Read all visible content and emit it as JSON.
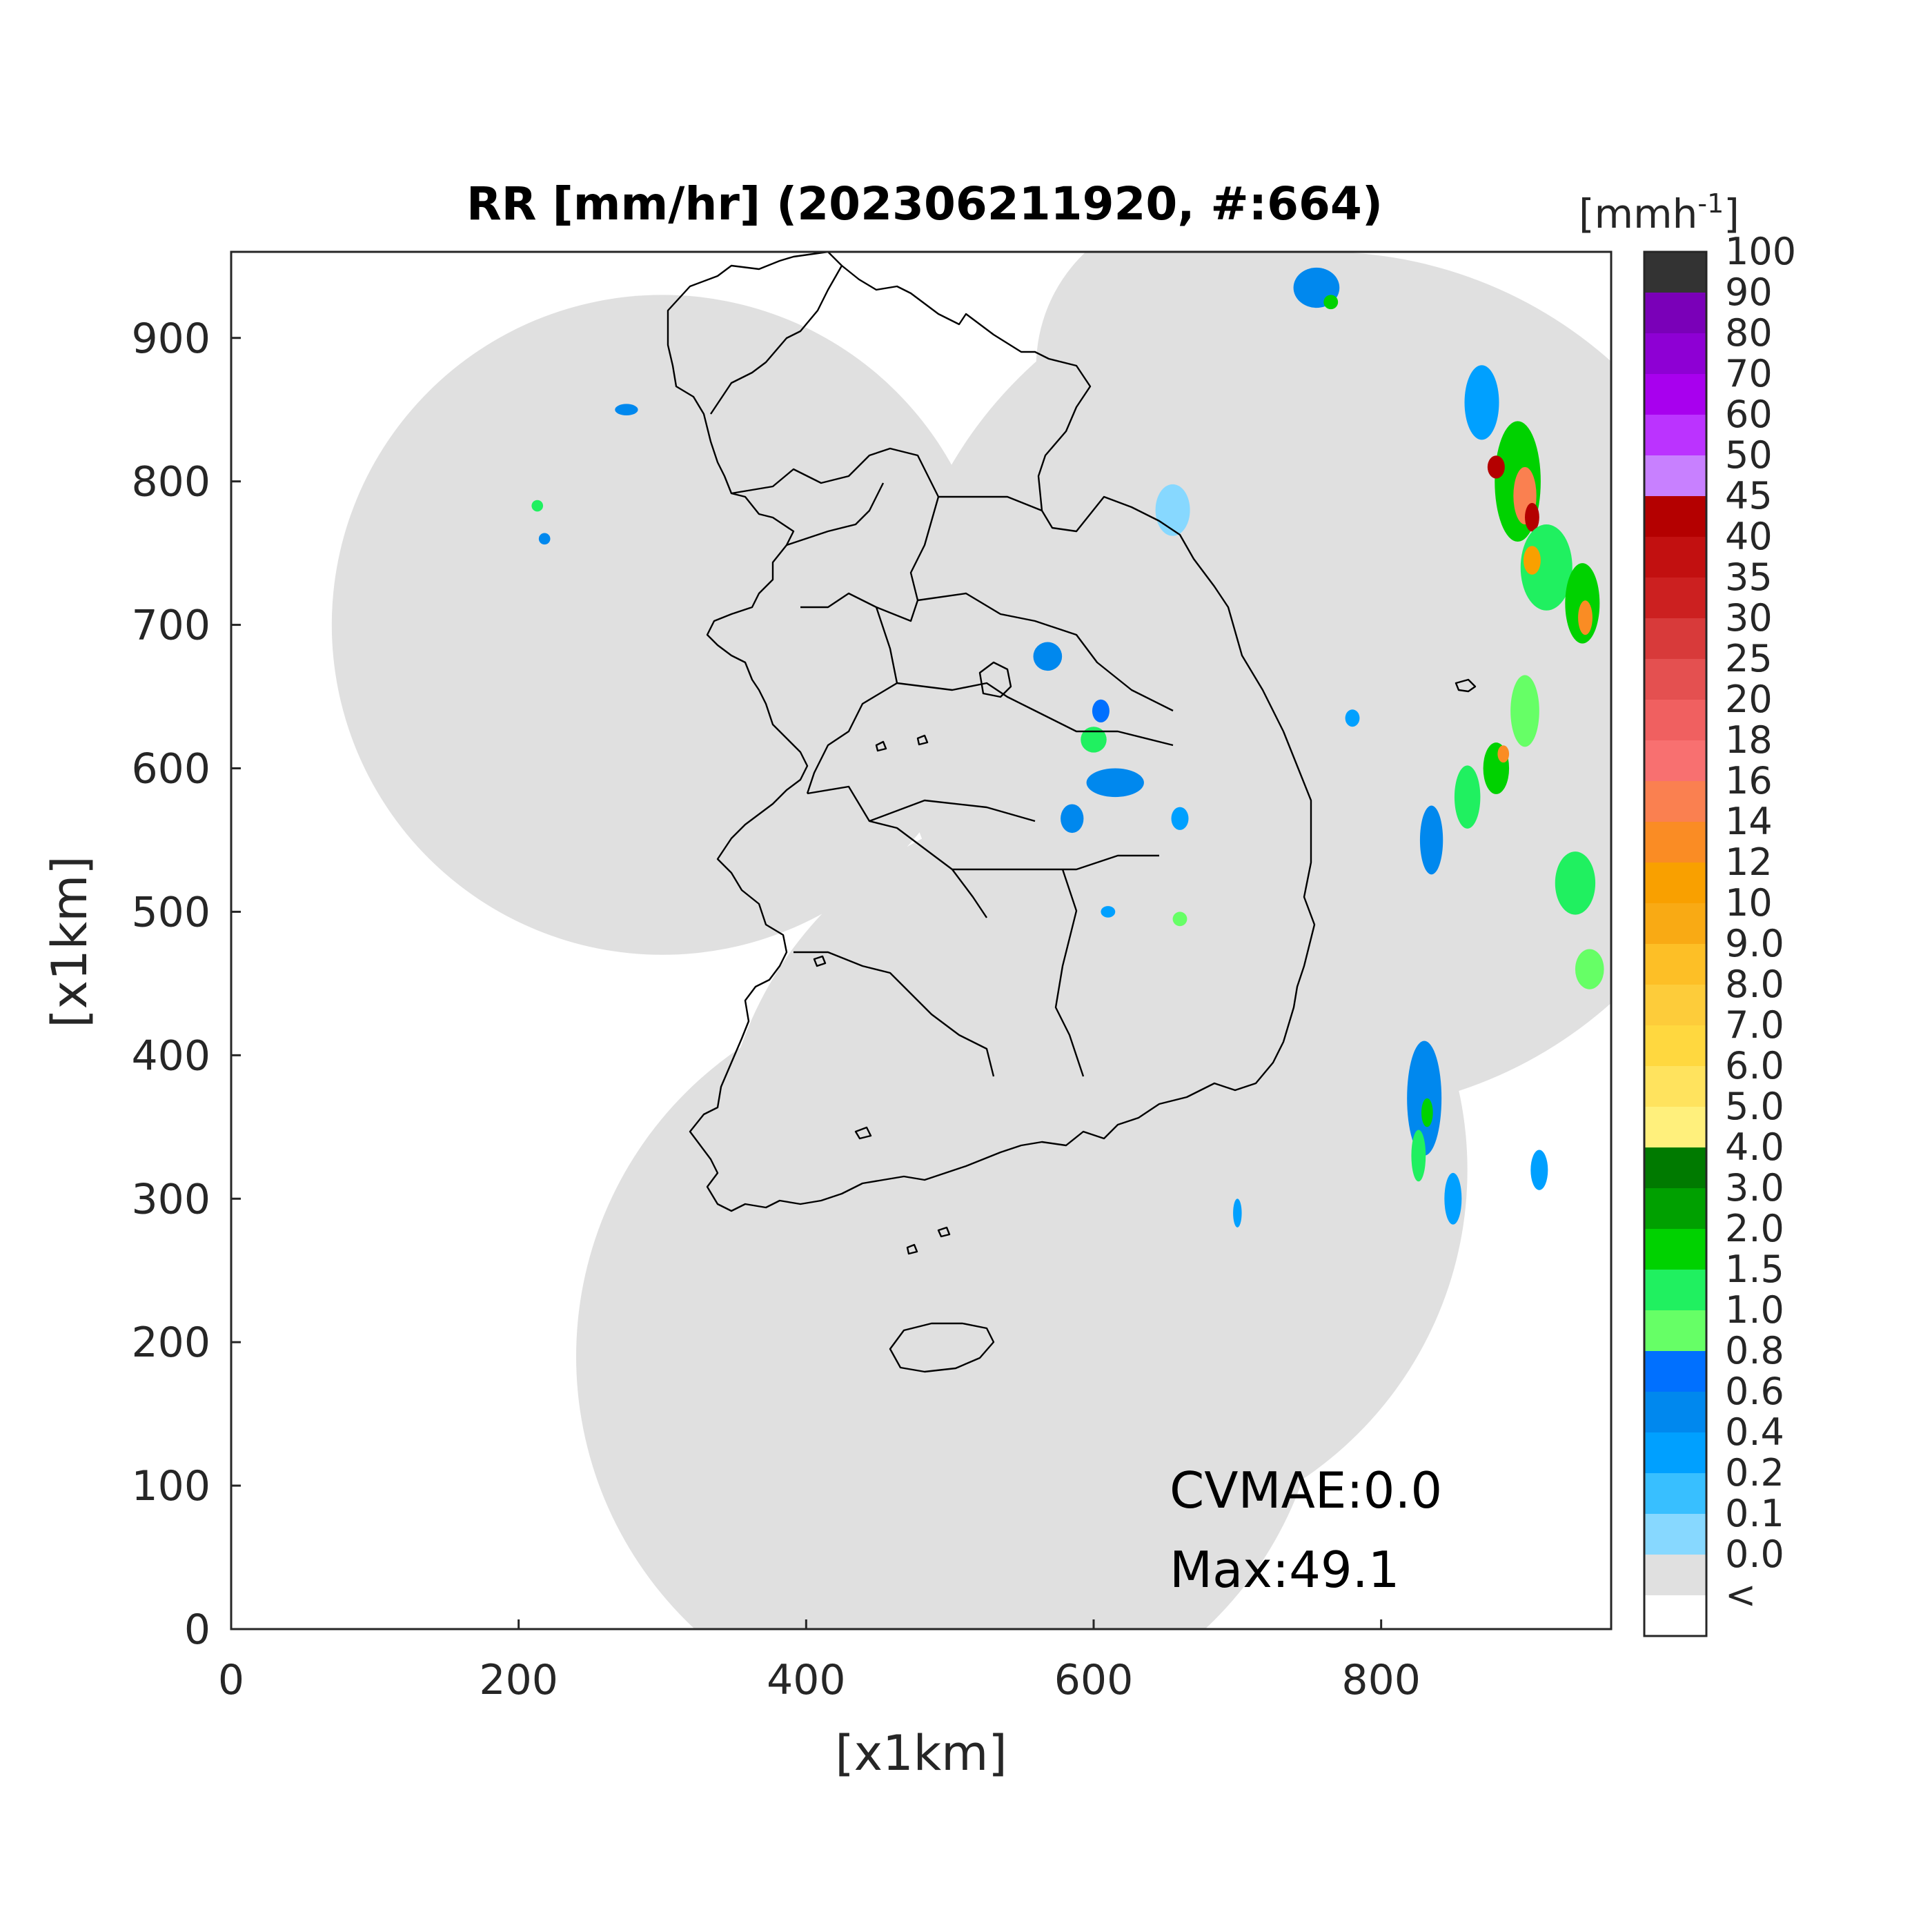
{
  "title": "RR [mm/hr] (202306211920, #:664)",
  "xlabel": "[x1km]",
  "ylabel": "[x1km]",
  "annotations": {
    "cvmae": "CVMAE:0.0",
    "max": "Max:49.1"
  },
  "colorbar": {
    "unit": "[mmh",
    "unit_exp": "-1",
    "unit_close": "]",
    "labels": [
      "100",
      "90",
      "80",
      "70",
      "60",
      "50",
      "45",
      "40",
      "35",
      "30",
      "25",
      "20",
      "18",
      "16",
      "14",
      "12",
      "10",
      "9.0",
      "8.0",
      "7.0",
      "6.0",
      "5.0",
      "4.0",
      "3.0",
      "2.0",
      "1.5",
      "1.0",
      "0.8",
      "0.6",
      "0.4",
      "0.2",
      "0.1",
      "0.0",
      "<"
    ],
    "colors": [
      "#333333",
      "#7a00b8",
      "#8e00d4",
      "#a800ee",
      "#bb33ff",
      "#c880ff",
      "#b40000",
      "#c21010",
      "#cc2020",
      "#d83a3a",
      "#e45050",
      "#f06060",
      "#f87070",
      "#fa8050",
      "#fa8c24",
      "#f9a000",
      "#f9aa14",
      "#fdbf26",
      "#fdcc3a",
      "#ffd83f",
      "#ffe35e",
      "#fff07c",
      "#007a00",
      "#00a000",
      "#00d200",
      "#20f060",
      "#66ff66",
      "#0070ff",
      "#0088ee",
      "#00a0ff",
      "#38bfff",
      "#87d8ff",
      "#e0e0e0",
      "#ffffff"
    ],
    "background_color": "#e0e0e0"
  },
  "chart_data": {
    "type": "heatmap",
    "title": "RR [mm/hr] (202306211920, #:664)",
    "xlabel": "[x1km]",
    "ylabel": "[x1km]",
    "xlim": [
      0,
      960
    ],
    "ylim": [
      0,
      960
    ],
    "xticks": [
      0,
      200,
      400,
      600,
      800
    ],
    "yticks": [
      0,
      100,
      200,
      300,
      400,
      500,
      600,
      700,
      800,
      900
    ],
    "colorbar_units": "mmh^-1",
    "max_value": 49.1,
    "cvmae": 0.0,
    "radar_coverage_circles": [
      {
        "cx": 300,
        "cy": 700,
        "r": 230
      },
      {
        "cx": 600,
        "cy": 320,
        "r": 260
      },
      {
        "cx": 500,
        "cy": 190,
        "r": 260
      },
      {
        "cx": 760,
        "cy": 660,
        "r": 300
      },
      {
        "cx": 670,
        "cy": 880,
        "r": 110
      }
    ],
    "precip_cells": [
      {
        "x": 895,
        "y": 800,
        "rx": 16,
        "ry": 42,
        "v": 2.0
      },
      {
        "x": 900,
        "y": 790,
        "rx": 8,
        "ry": 20,
        "v": 16
      },
      {
        "x": 905,
        "y": 775,
        "rx": 5,
        "ry": 10,
        "v": 45
      },
      {
        "x": 915,
        "y": 740,
        "rx": 18,
        "ry": 30,
        "v": 1.5
      },
      {
        "x": 905,
        "y": 745,
        "rx": 6,
        "ry": 10,
        "v": 12
      },
      {
        "x": 940,
        "y": 715,
        "rx": 12,
        "ry": 28,
        "v": 2.0
      },
      {
        "x": 942,
        "y": 705,
        "rx": 5,
        "ry": 12,
        "v": 14
      },
      {
        "x": 900,
        "y": 640,
        "rx": 10,
        "ry": 25,
        "v": 1.0
      },
      {
        "x": 880,
        "y": 600,
        "rx": 9,
        "ry": 18,
        "v": 2.0
      },
      {
        "x": 885,
        "y": 610,
        "rx": 4,
        "ry": 6,
        "v": 14
      },
      {
        "x": 860,
        "y": 580,
        "rx": 9,
        "ry": 22,
        "v": 1.5
      },
      {
        "x": 835,
        "y": 550,
        "rx": 8,
        "ry": 24,
        "v": 0.6
      },
      {
        "x": 935,
        "y": 520,
        "rx": 14,
        "ry": 22,
        "v": 1.5
      },
      {
        "x": 945,
        "y": 460,
        "rx": 10,
        "ry": 14,
        "v": 1.0
      },
      {
        "x": 830,
        "y": 370,
        "rx": 12,
        "ry": 40,
        "v": 0.6
      },
      {
        "x": 832,
        "y": 360,
        "rx": 4,
        "ry": 10,
        "v": 2.0
      },
      {
        "x": 826,
        "y": 330,
        "rx": 5,
        "ry": 18,
        "v": 1.5
      },
      {
        "x": 850,
        "y": 300,
        "rx": 6,
        "ry": 18,
        "v": 0.4
      },
      {
        "x": 870,
        "y": 855,
        "rx": 12,
        "ry": 26,
        "v": 0.4
      },
      {
        "x": 880,
        "y": 810,
        "rx": 6,
        "ry": 8,
        "v": 45
      },
      {
        "x": 568,
        "y": 678,
        "rx": 10,
        "ry": 10,
        "v": 0.6
      },
      {
        "x": 600,
        "y": 620,
        "rx": 9,
        "ry": 9,
        "v": 1.5
      },
      {
        "x": 605,
        "y": 640,
        "rx": 6,
        "ry": 8,
        "v": 0.8
      },
      {
        "x": 615,
        "y": 590,
        "rx": 20,
        "ry": 10,
        "v": 0.6
      },
      {
        "x": 585,
        "y": 565,
        "rx": 8,
        "ry": 10,
        "v": 0.6
      },
      {
        "x": 660,
        "y": 565,
        "rx": 6,
        "ry": 8,
        "v": 0.4
      },
      {
        "x": 610,
        "y": 500,
        "rx": 5,
        "ry": 4,
        "v": 0.4
      },
      {
        "x": 660,
        "y": 495,
        "rx": 5,
        "ry": 5,
        "v": 1.0
      },
      {
        "x": 655,
        "y": 780,
        "rx": 12,
        "ry": 18,
        "v": 0.1
      },
      {
        "x": 213,
        "y": 783,
        "rx": 4,
        "ry": 4,
        "v": 1.5
      },
      {
        "x": 218,
        "y": 760,
        "rx": 4,
        "ry": 4,
        "v": 0.6
      },
      {
        "x": 275,
        "y": 850,
        "rx": 8,
        "ry": 4,
        "v": 0.6
      },
      {
        "x": 755,
        "y": 935,
        "rx": 16,
        "ry": 14,
        "v": 0.6
      },
      {
        "x": 765,
        "y": 925,
        "rx": 5,
        "ry": 5,
        "v": 2.0
      },
      {
        "x": 780,
        "y": 635,
        "rx": 5,
        "ry": 6,
        "v": 0.4
      },
      {
        "x": 700,
        "y": 290,
        "rx": 3,
        "ry": 10,
        "v": 0.4
      },
      {
        "x": 910,
        "y": 320,
        "rx": 6,
        "ry": 14,
        "v": 0.4
      }
    ]
  }
}
